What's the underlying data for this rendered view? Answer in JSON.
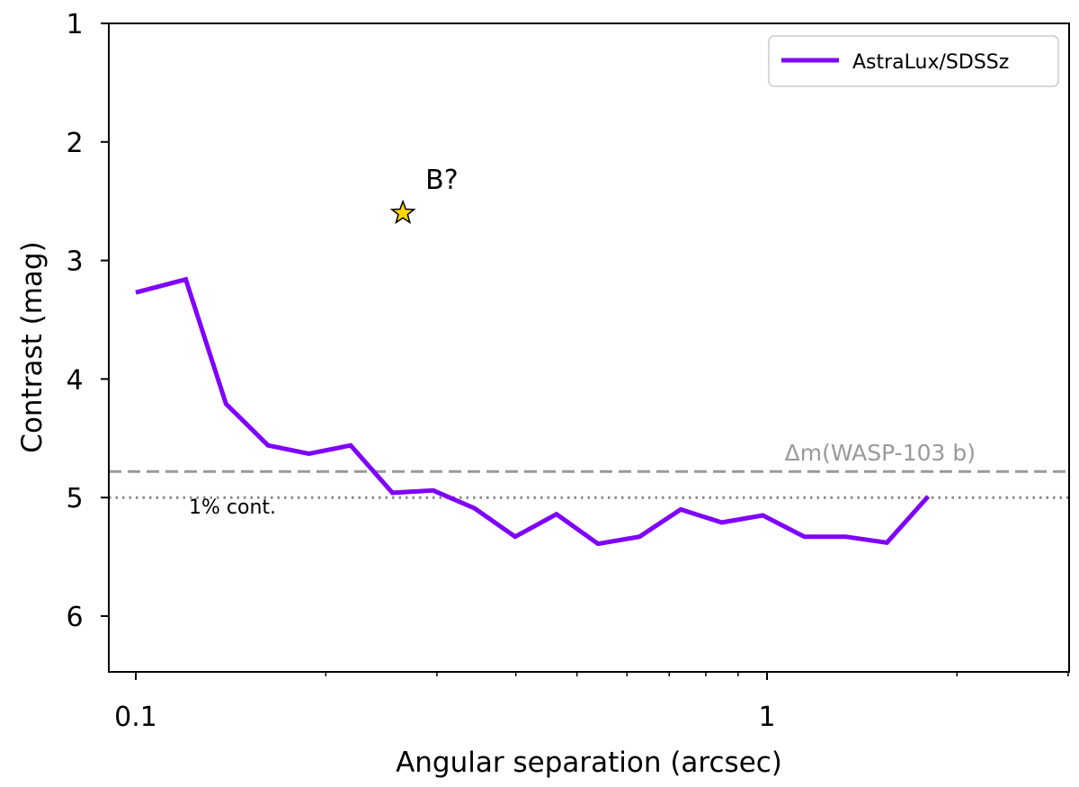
{
  "chart_data": {
    "type": "line",
    "title": "",
    "xlabel": "Angular separation (arcsec)",
    "ylabel": "Contrast (mag)",
    "xscale": "log",
    "xlim": [
      0.092,
      3.0
    ],
    "ylim": [
      6.5,
      1.0
    ],
    "y_inverted": true,
    "x_major_ticks": [
      0.1,
      1
    ],
    "x_major_tick_labels": [
      "0.1",
      "1"
    ],
    "x_minor_ticks": [
      0.2,
      0.3,
      0.4,
      0.5,
      0.6,
      0.7,
      0.8,
      0.9,
      2,
      3
    ],
    "y_ticks": [
      1,
      2,
      3,
      4,
      5,
      6
    ],
    "y_tick_labels": [
      "1",
      "2",
      "3",
      "4",
      "5",
      "6"
    ],
    "grid": false,
    "legend": {
      "location": "top-right",
      "entries": [
        "AstraLux/SDSSz"
      ]
    },
    "series": [
      {
        "name": "AstraLux/SDSSz",
        "color": "#7F00FF",
        "x": [
          0.1,
          0.12,
          0.139,
          0.162,
          0.188,
          0.219,
          0.255,
          0.296,
          0.344,
          0.399,
          0.464,
          0.54,
          0.628,
          0.73,
          0.848,
          0.985,
          1.146,
          1.332,
          1.549,
          1.8
        ],
        "y": [
          3.27,
          3.16,
          4.21,
          4.56,
          4.63,
          4.56,
          4.96,
          4.94,
          5.09,
          5.33,
          5.14,
          5.39,
          5.33,
          5.1,
          5.21,
          5.15,
          5.33,
          5.33,
          5.38,
          4.99
        ]
      }
    ],
    "reference_lines": [
      {
        "label": "Δm(WASP-103 b)",
        "y": 4.78,
        "style": "dashed",
        "color": "#999999"
      },
      {
        "label": "1% cont.",
        "y": 5.0,
        "style": "dotted",
        "color": "#888888"
      }
    ],
    "markers": [
      {
        "label": "B?",
        "x": 0.265,
        "y": 2.6,
        "shape": "star",
        "color": "#FFD700"
      }
    ]
  }
}
